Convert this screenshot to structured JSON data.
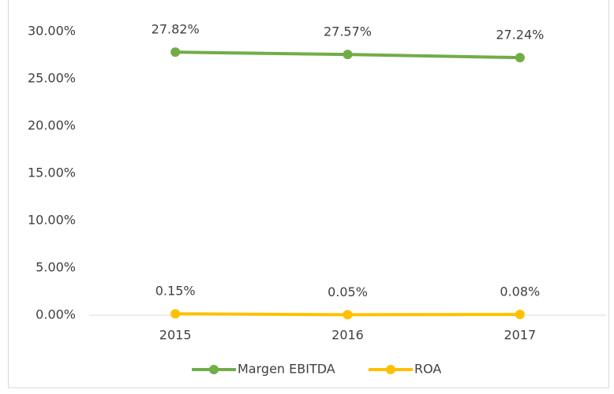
{
  "chart_data": {
    "type": "line",
    "categories": [
      "2015",
      "2016",
      "2017"
    ],
    "series": [
      {
        "name": "Margen EBITDA",
        "color": "#70ad47",
        "values": [
          27.82,
          27.57,
          27.24
        ],
        "value_labels": [
          "27.82%",
          "27.57%",
          "27.24%"
        ]
      },
      {
        "name": "ROA",
        "color": "#ffc000",
        "values": [
          0.15,
          0.05,
          0.08
        ],
        "value_labels": [
          "0.15%",
          "0.05%",
          "0.08%"
        ]
      }
    ],
    "ylim": [
      0,
      30
    ],
    "yticks": [
      {
        "value": 0,
        "label": "0.00%"
      },
      {
        "value": 5,
        "label": "5.00%"
      },
      {
        "value": 10,
        "label": "10.00%"
      },
      {
        "value": 15,
        "label": "15.00%"
      },
      {
        "value": 20,
        "label": "20.00%"
      },
      {
        "value": 25,
        "label": "25.00%"
      },
      {
        "value": 30,
        "label": "30.00%"
      }
    ],
    "grid": false,
    "legend": "bottom"
  }
}
